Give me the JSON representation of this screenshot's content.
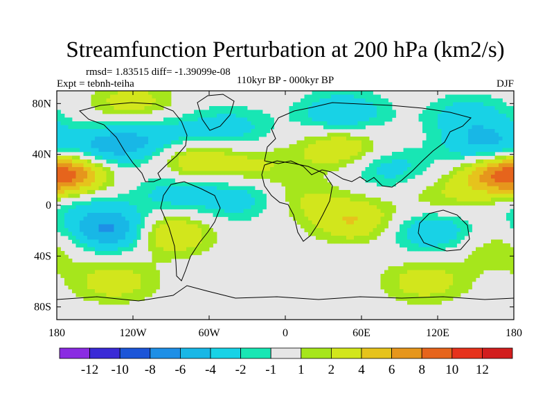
{
  "chart_data": {
    "type": "heatmap",
    "title": "Streamfunction Perturbation at 200 hPa (km2/s)",
    "stats_line": "rmsd= 1.83515 diff= -1.39099e-08",
    "experiment_label": "Expt = tebnh-teiha",
    "period_label": "110kyr BP - 000kyr BP",
    "season_label": "DJF",
    "projection": "cylindrical-equidistant",
    "lon_range": [
      -180,
      180
    ],
    "lat_range": [
      -90,
      90
    ],
    "x_ticks": [
      {
        "value": -180,
        "label": "180"
      },
      {
        "value": -120,
        "label": "120W"
      },
      {
        "value": -60,
        "label": "60W"
      },
      {
        "value": 0,
        "label": "0"
      },
      {
        "value": 60,
        "label": "60E"
      },
      {
        "value": 120,
        "label": "120E"
      },
      {
        "value": 180,
        "label": "180"
      }
    ],
    "y_ticks": [
      {
        "value": 80,
        "label": "80N"
      },
      {
        "value": 40,
        "label": "40N"
      },
      {
        "value": 0,
        "label": "0"
      },
      {
        "value": -40,
        "label": "40S"
      },
      {
        "value": -80,
        "label": "80S"
      }
    ],
    "colorbar": {
      "levels": [
        -12,
        -10,
        -8,
        -6,
        -4,
        -2,
        -1,
        1,
        2,
        4,
        6,
        8,
        10,
        12
      ],
      "labels": [
        "-12",
        "-10",
        "-8",
        "-6",
        "-4",
        "-2",
        "-1",
        "1",
        "2",
        "4",
        "6",
        "8",
        "10",
        "12"
      ],
      "colors": [
        "#8a2be2",
        "#3a2ad6",
        "#1c55d8",
        "#1e8fe6",
        "#18b7e6",
        "#18d2e6",
        "#18e6b4",
        "#e6e6e6",
        "#a6e61c",
        "#d2e61c",
        "#e6c31c",
        "#e6961c",
        "#e6641c",
        "#e6321c",
        "#d21e1e"
      ]
    },
    "field_centers": [
      {
        "lon": -170,
        "lat": 25,
        "value": 6
      },
      {
        "lon": 170,
        "lat": 25,
        "value": 6
      },
      {
        "lon": -140,
        "lat": 45,
        "value": -5
      },
      {
        "lon": 160,
        "lat": 45,
        "value": -5
      },
      {
        "lon": -160,
        "lat": 0,
        "value": -2
      },
      {
        "lon": -135,
        "lat": -20,
        "value": -7
      },
      {
        "lon": -95,
        "lat": -22,
        "value": 5
      },
      {
        "lon": -135,
        "lat": -60,
        "value": 3
      },
      {
        "lon": -120,
        "lat": 80,
        "value": 3
      },
      {
        "lon": -45,
        "lat": 60,
        "value": -3
      },
      {
        "lon": -100,
        "lat": 55,
        "value": -3
      },
      {
        "lon": 45,
        "lat": 72,
        "value": -4
      },
      {
        "lon": -35,
        "lat": 5,
        "value": -3
      },
      {
        "lon": -85,
        "lat": 10,
        "value": -3
      },
      {
        "lon": -70,
        "lat": 35,
        "value": 4
      },
      {
        "lon": -20,
        "lat": 30,
        "value": 2
      },
      {
        "lon": 45,
        "lat": 45,
        "value": 4
      },
      {
        "lon": 80,
        "lat": 30,
        "value": -3
      },
      {
        "lon": 15,
        "lat": 5,
        "value": 2
      },
      {
        "lon": 55,
        "lat": -12,
        "value": 4
      },
      {
        "lon": 115,
        "lat": -20,
        "value": -4
      },
      {
        "lon": 110,
        "lat": -60,
        "value": 3
      },
      {
        "lon": -20,
        "lat": -65,
        "value": 1
      },
      {
        "lon": 125,
        "lat": 5,
        "value": 2
      },
      {
        "lon": 145,
        "lat": 70,
        "value": -3
      },
      {
        "lon": 168,
        "lat": -35,
        "value": 2
      }
    ]
  }
}
